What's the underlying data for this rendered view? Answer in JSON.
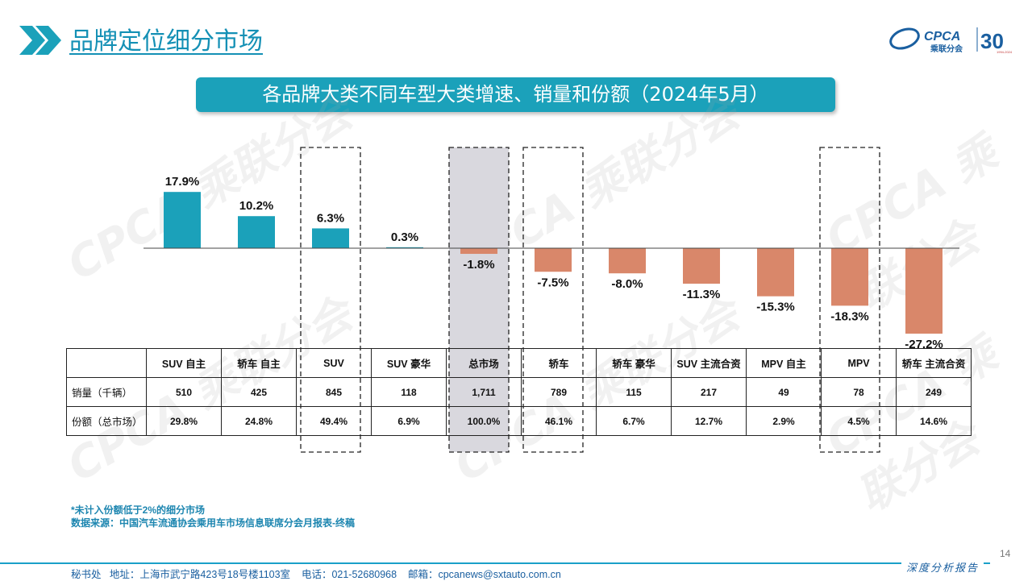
{
  "header": {
    "title": "品牌定位细分市场",
    "logo_text": "CPCA",
    "logo_sub": "乘联分会",
    "anniv": "30",
    "anniv_years": "1994-2024"
  },
  "banner": "各品牌大类不同车型大类增速、销量和份额（2024年5月）",
  "watermark": "CPCA 乘联分会",
  "colors": {
    "positive": "#1ba1ba",
    "negative": "#d9876a",
    "accent": "#1490b5",
    "highlight": "#d9d8de"
  },
  "chart_data": {
    "type": "bar",
    "categories": [
      "SUV 自主",
      "轿车 自主",
      "SUV",
      "SUV 豪华",
      "总市场",
      "轿车",
      "轿车 豪华",
      "SUV 主流合资",
      "MPV 自主",
      "MPV",
      "轿车 主流合资"
    ],
    "values": [
      17.9,
      10.2,
      6.3,
      0.3,
      -1.8,
      -7.5,
      -8.0,
      -11.3,
      -15.3,
      -18.3,
      -27.2
    ],
    "labels": [
      "17.9%",
      "10.2%",
      "6.3%",
      "0.3%",
      "-1.8%",
      "-7.5%",
      "-8.0%",
      "-11.3%",
      "-15.3%",
      "-18.3%",
      "-27.2%"
    ],
    "highlighted": [
      "SUV",
      "总市场",
      "轿车",
      "MPV"
    ],
    "shaded": "总市场",
    "grid": false
  },
  "table": {
    "headers": [
      "",
      "SUV 自主",
      "轿车 自主",
      "SUV",
      "SUV 豪华",
      "总市场",
      "轿车",
      "轿车 豪华",
      "SUV 主流合资",
      "MPV 自主",
      "MPV",
      "轿车 主流合资"
    ],
    "rows": [
      [
        "销量（千辆）",
        "510",
        "425",
        "845",
        "118",
        "1,711",
        "789",
        "115",
        "217",
        "49",
        "78",
        "249"
      ],
      [
        "份额（总市场）",
        "29.8%",
        "24.8%",
        "49.4%",
        "6.9%",
        "100.0%",
        "46.1%",
        "6.7%",
        "12.7%",
        "2.9%",
        "4.5%",
        "14.6%"
      ]
    ]
  },
  "notes": {
    "note1": "*未计入份额低于2%的细分市场",
    "note2": "数据来源：中国汽车流通协会乘用车市场信息联席分会月报表-终稿"
  },
  "footer": {
    "contact": "秘书处   地址：上海市武宁路423号18号楼1103室    电话：021-52680968    邮箱：cpcanews@sxtauto.com.cn",
    "report": "深度分析报告",
    "page": "14"
  }
}
